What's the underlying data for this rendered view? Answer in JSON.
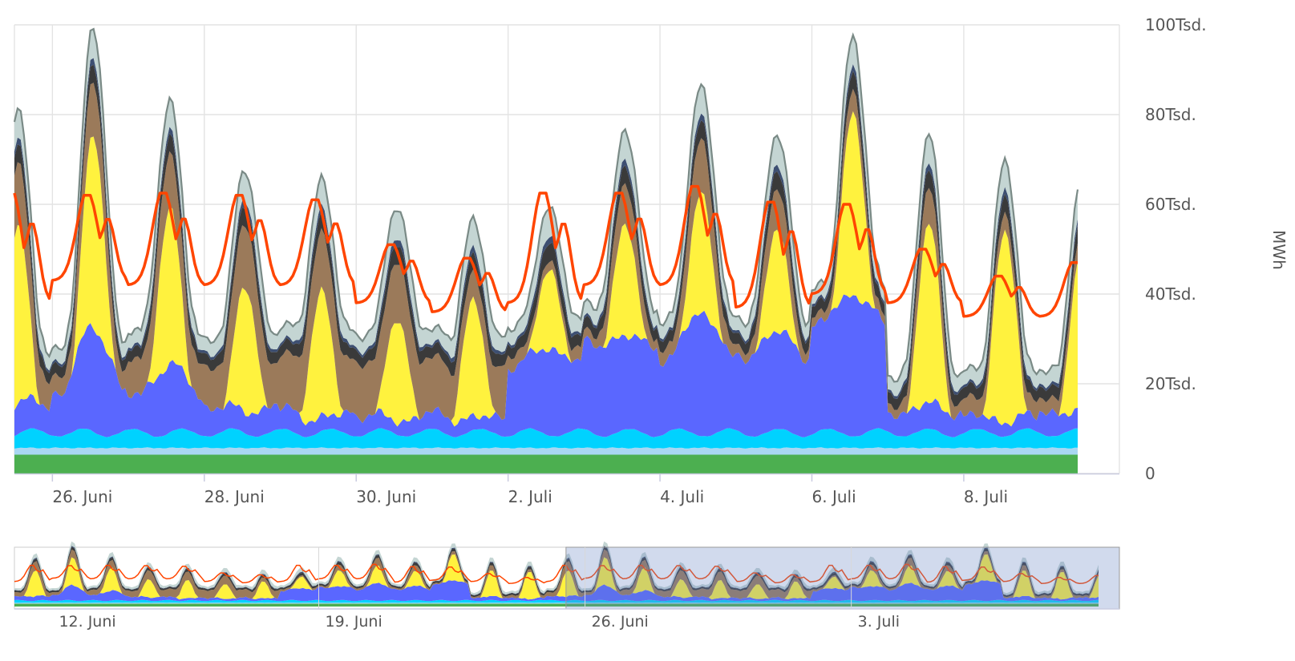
{
  "chart_data": {
    "type": "area",
    "stacked": true,
    "x_unit": "date",
    "ylabel": "MWh",
    "ylim": [
      0,
      100000
    ],
    "y_ticks": [
      0,
      20000,
      40000,
      60000,
      80000,
      100000
    ],
    "y_tick_labels": [
      "0",
      "20Tsd.",
      "40Tsd.",
      "60Tsd.",
      "80Tsd.",
      "100Tsd."
    ],
    "x_range": [
      "2025-06-25T12:00",
      "2025-07-09T12:00"
    ],
    "x_ticks": [
      "2025-06-26",
      "2025-06-28",
      "2025-06-30",
      "2025-07-02",
      "2025-07-04",
      "2025-07-06",
      "2025-07-08"
    ],
    "x_tick_labels": [
      "26. Juni",
      "28. Juni",
      "30. Juni",
      "2. Juli",
      "4. Juli",
      "6. Juli",
      "8. Juli"
    ],
    "grid": true,
    "stack_order_bottom_to_top": [
      "green",
      "lightblue",
      "cyan",
      "blue",
      "yellow",
      "brown",
      "black",
      "darkblue",
      "lightgray"
    ],
    "series_colors": {
      "green": "#4caf50",
      "lightblue": "#a9d7f2",
      "cyan": "#00d2ff",
      "blue": "#5a67ff",
      "yellow": "#fff23e",
      "brown": "#9b7a5a",
      "black": "#3a3a3a",
      "darkblue": "#3d4f72",
      "lightgray": "#c4d5d3",
      "line": "#ff4500"
    },
    "days": [
      "2025-06-25",
      "2025-06-26",
      "2025-06-27",
      "2025-06-28",
      "2025-06-29",
      "2025-06-30",
      "2025-07-01",
      "2025-07-02",
      "2025-07-03",
      "2025-07-04",
      "2025-07-05",
      "2025-07-06",
      "2025-07-07",
      "2025-07-08",
      "2025-07-09"
    ],
    "day_profile": {
      "yellow_peak": [
        40000,
        43000,
        35000,
        28000,
        28000,
        23000,
        26000,
        18000,
        25000,
        27000,
        23000,
        41000,
        40000,
        43000,
        34000
      ],
      "blue_night": [
        6000,
        9000,
        8000,
        6000,
        5000,
        4000,
        4000,
        15000,
        20000,
        16000,
        17000,
        24000,
        4500,
        3500,
        5000
      ],
      "blue_day": [
        7000,
        23000,
        15000,
        5000,
        3000,
        3000,
        3000,
        19000,
        21000,
        27000,
        22000,
        31000,
        6000,
        3000,
        4000
      ],
      "thermal_day": [
        14000,
        12000,
        12000,
        14000,
        13000,
        13000,
        6000,
        2000,
        9000,
        12000,
        9000,
        5000,
        8000,
        4000,
        4000
      ],
      "thermal_night": [
        6000,
        4000,
        8000,
        9000,
        12000,
        12000,
        12000,
        3000,
        2000,
        3000,
        2000,
        2000,
        2000,
        4000,
        3000
      ],
      "line_peak": [
        62500,
        62000,
        62500,
        62000,
        61000,
        51000,
        48000,
        62500,
        62500,
        64000,
        60500,
        60000,
        50000,
        44000,
        47000
      ],
      "line_trough": [
        38000,
        43000,
        42000,
        42000,
        42000,
        38000,
        36000,
        38000,
        42000,
        42000,
        37000,
        40000,
        38000,
        35000,
        35000
      ]
    },
    "navigator": {
      "x_range": [
        "2025-06-11",
        "2025-07-09T12:00"
      ],
      "selected_range": [
        "2025-06-25T12:00",
        "2025-07-09T12:00"
      ],
      "x_tick_labels": [
        "12. Juni",
        "19. Juni",
        "26. Juni",
        "3. Juli"
      ]
    }
  }
}
